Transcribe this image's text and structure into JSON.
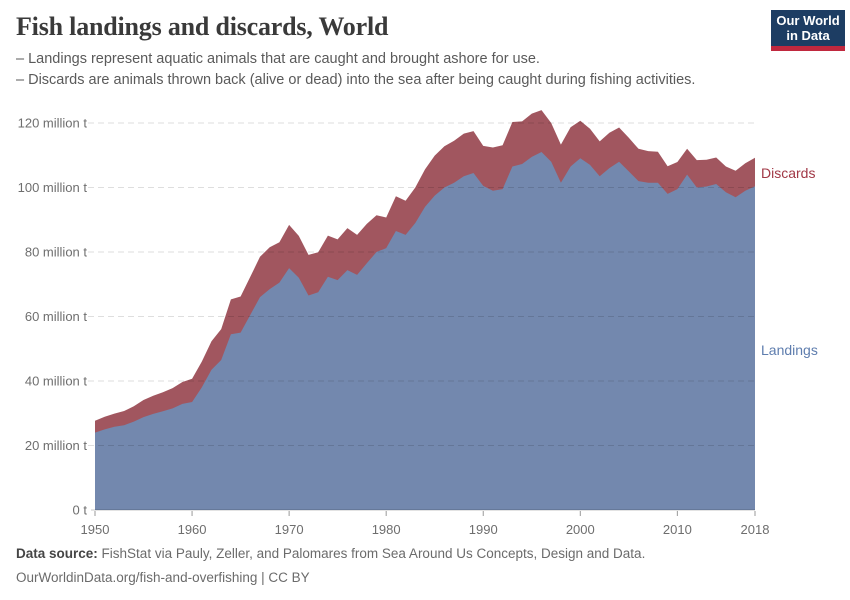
{
  "header": {
    "title": "Fish landings and discards, World",
    "subtitle_lines": [
      "– Landings represent aquatic animals that are caught and brought ashore for use.",
      "– Discards are animals thrown back (alive or dead) into the sea after being caught during fishing activities."
    ],
    "logo": {
      "line1": "Our World",
      "line2": "in Data",
      "bg": "#1d3d63",
      "accent": "#c0283e"
    }
  },
  "chart_data": {
    "type": "area",
    "stacked": true,
    "title": "Fish landings and discards, World",
    "unit": "million t",
    "xlabel": "",
    "ylabel": "",
    "ylim": [
      0,
      120
    ],
    "grid": "dashed-horizontal",
    "legend_position": "right",
    "x": [
      1950,
      1951,
      1952,
      1953,
      1954,
      1955,
      1956,
      1957,
      1958,
      1959,
      1960,
      1961,
      1962,
      1963,
      1964,
      1965,
      1966,
      1967,
      1968,
      1969,
      1970,
      1971,
      1972,
      1973,
      1974,
      1975,
      1976,
      1977,
      1978,
      1979,
      1980,
      1981,
      1982,
      1983,
      1984,
      1985,
      1986,
      1987,
      1988,
      1989,
      1990,
      1991,
      1992,
      1993,
      1994,
      1995,
      1996,
      1997,
      1998,
      1999,
      2000,
      2001,
      2002,
      2003,
      2004,
      2005,
      2006,
      2007,
      2008,
      2009,
      2010,
      2011,
      2012,
      2013,
      2014,
      2015,
      2016,
      2017,
      2018
    ],
    "series": [
      {
        "name": "Landings",
        "color": "#7388ae",
        "label_color": "#5e7dae",
        "values": [
          24.0,
          25.0,
          25.8,
          26.3,
          27.4,
          28.8,
          29.8,
          30.6,
          31.5,
          32.9,
          33.5,
          38.0,
          43.5,
          46.5,
          54.5,
          55.0,
          60.5,
          66.0,
          68.5,
          70.5,
          75.0,
          72.0,
          66.5,
          67.5,
          72.3,
          71.3,
          74.4,
          72.9,
          76.5,
          80.0,
          81.2,
          86.5,
          85.3,
          89.0,
          94.0,
          97.5,
          100.0,
          101.5,
          103.5,
          104.5,
          100.5,
          99.0,
          99.5,
          106.5,
          107.3,
          109.5,
          111.0,
          108.0,
          101.5,
          106.5,
          109.1,
          107.0,
          103.5,
          106.0,
          108.0,
          105.0,
          102.0,
          101.5,
          101.5,
          98.0,
          99.5,
          104.0,
          100.0,
          100.3,
          101.1,
          98.5,
          97.0,
          99.0,
          100.4
        ]
      },
      {
        "name": "Discards",
        "color": "#a1565f",
        "label_color": "#a13846",
        "values": [
          3.7,
          3.9,
          4.1,
          4.4,
          4.8,
          5.3,
          5.6,
          5.9,
          6.3,
          6.8,
          7.2,
          8.0,
          8.8,
          9.6,
          10.8,
          11.2,
          11.8,
          12.5,
          13.0,
          12.5,
          13.4,
          13.0,
          12.6,
          12.4,
          12.8,
          12.6,
          13.0,
          12.4,
          12.2,
          11.4,
          9.5,
          10.8,
          10.6,
          11.0,
          11.6,
          12.4,
          12.8,
          13.0,
          13.2,
          13.0,
          12.4,
          13.4,
          13.6,
          13.8,
          13.2,
          13.4,
          13.0,
          12.0,
          11.8,
          12.2,
          11.6,
          11.2,
          10.8,
          11.0,
          10.6,
          10.4,
          10.0,
          9.8,
          9.6,
          8.6,
          8.4,
          8.0,
          8.5,
          8.3,
          8.2,
          8.0,
          8.2,
          8.5,
          8.8
        ]
      }
    ],
    "x_ticks": [
      "1950",
      "1960",
      "1970",
      "1980",
      "1990",
      "2000",
      "2010",
      "2018"
    ],
    "y_ticks": [
      {
        "value": 0,
        "label": "0 t"
      },
      {
        "value": 20,
        "label": "20 million t"
      },
      {
        "value": 40,
        "label": "40 million t"
      },
      {
        "value": 60,
        "label": "60 million t"
      },
      {
        "value": 80,
        "label": "80 million t"
      },
      {
        "value": 100,
        "label": "100 million t"
      },
      {
        "value": 120,
        "label": "120 million t"
      }
    ]
  },
  "footer": {
    "source_label": "Data source:",
    "source_text": "FishStat via Pauly, Zeller, and Palomares from Sea Around Us Concepts, Design and Data.",
    "link_line": "OurWorldinData.org/fish-and-overfishing | CC BY"
  }
}
